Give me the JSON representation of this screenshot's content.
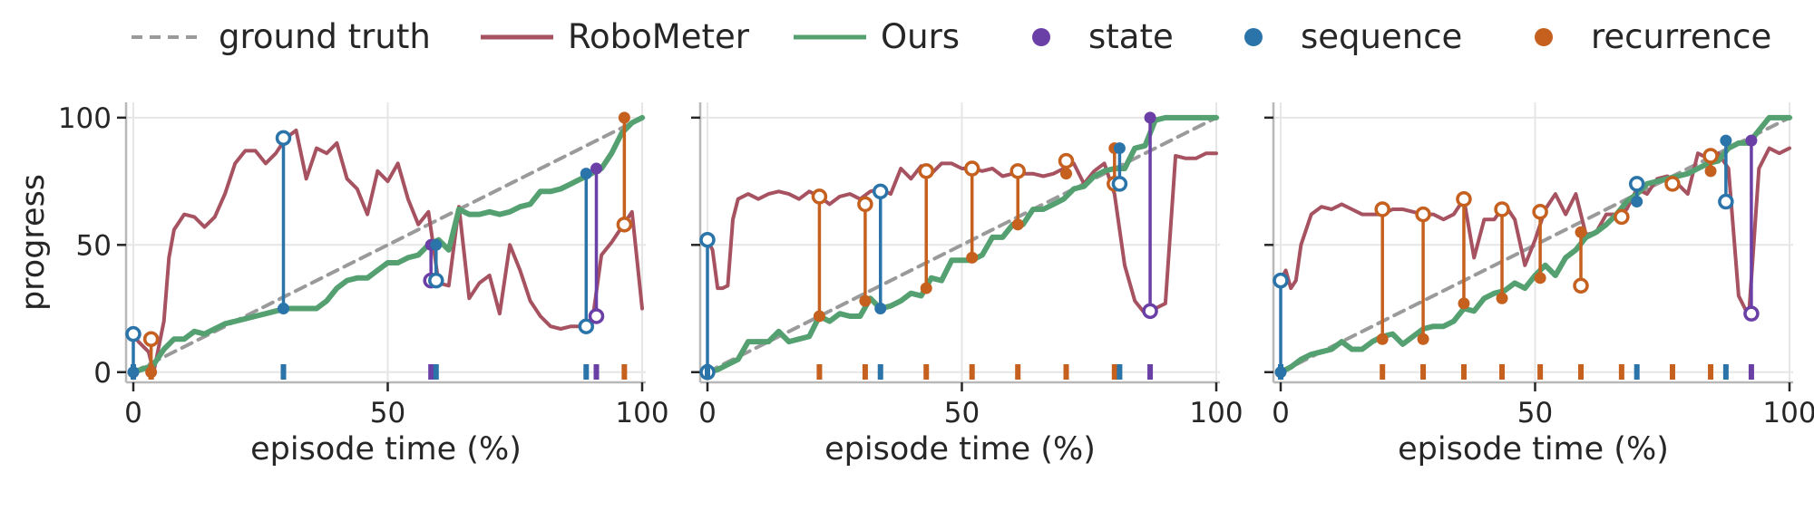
{
  "colors": {
    "ground_truth": "#9a9a9a",
    "robometer": "#a65261",
    "ours": "#55a071",
    "state": "#6a3fa6",
    "sequence": "#2b74aa",
    "recurrence": "#c5601f",
    "grid": "#e6e6e6",
    "spine": "#b8b8b8"
  },
  "legend": [
    {
      "label": "ground truth",
      "kind": "dash",
      "color_key": "ground_truth"
    },
    {
      "label": "RoboMeter",
      "kind": "line",
      "color_key": "robometer"
    },
    {
      "label": "Ours",
      "kind": "line",
      "color_key": "ours"
    },
    {
      "label": "state",
      "kind": "dot",
      "color_key": "state"
    },
    {
      "label": "sequence",
      "kind": "dot",
      "color_key": "sequence"
    },
    {
      "label": "recurrence",
      "kind": "dot",
      "color_key": "recurrence"
    }
  ],
  "chart_data": [
    {
      "type": "line",
      "xlabel": "episode time (%)",
      "ylabel": "progress",
      "xlim": [
        0,
        100
      ],
      "ylim": [
        -4,
        106
      ],
      "xticks": [
        0,
        50,
        100
      ],
      "yticks": [
        0,
        50,
        100
      ],
      "grid": true,
      "series": [
        {
          "name": "ground truth",
          "color_key": "ground_truth",
          "style": "dashed",
          "x": [
            0,
            100
          ],
          "y": [
            0,
            100
          ]
        },
        {
          "name": "RoboMeter",
          "color_key": "robometer",
          "style": "solid",
          "x": [
            0,
            1,
            3,
            4,
            6,
            7,
            8,
            10,
            12,
            14,
            16,
            18,
            20,
            22,
            24,
            26,
            28,
            30,
            32,
            34,
            36,
            38,
            40,
            42,
            44,
            46,
            48,
            50,
            52,
            54,
            56,
            58,
            60,
            62,
            64,
            66,
            68,
            70,
            72,
            74,
            76,
            78,
            80,
            82,
            84,
            86,
            88,
            90,
            92,
            94,
            96,
            98,
            100
          ],
          "y": [
            15,
            12,
            8,
            0,
            20,
            45,
            56,
            62,
            61,
            57,
            61,
            70,
            82,
            87,
            87,
            82,
            86,
            92,
            95,
            76,
            88,
            86,
            90,
            76,
            72,
            62,
            79,
            75,
            82,
            68,
            58,
            63,
            35,
            34,
            65,
            29,
            35,
            38,
            23,
            50,
            40,
            28,
            22,
            18,
            17,
            18,
            18,
            17,
            46,
            51,
            57,
            63,
            25
          ]
        },
        {
          "name": "Ours",
          "color_key": "ours",
          "style": "solid",
          "x": [
            0,
            3,
            4,
            6,
            8,
            10,
            12,
            14,
            16,
            18,
            20,
            22,
            24,
            26,
            28,
            30,
            32,
            34,
            36,
            38,
            40,
            42,
            44,
            46,
            48,
            50,
            52,
            54,
            56,
            58,
            60,
            62,
            64,
            66,
            68,
            70,
            72,
            74,
            76,
            78,
            80,
            82,
            84,
            86,
            88,
            90,
            92,
            94,
            96,
            98,
            100
          ],
          "y": [
            0,
            2,
            3,
            9,
            13,
            13,
            16,
            15,
            17,
            19,
            20,
            21,
            22,
            23,
            24,
            25,
            25,
            25,
            25,
            28,
            33,
            36,
            37,
            37,
            40,
            43,
            43,
            45,
            46,
            50,
            52,
            48,
            64,
            62,
            62,
            63,
            62,
            63,
            65,
            66,
            71,
            71,
            72,
            74,
            76,
            78,
            80,
            86,
            94,
            98,
            100
          ]
        }
      ],
      "markers": [
        {
          "kind": "sequence",
          "x": 0,
          "top": 15,
          "bottom": 0,
          "hollow": "top"
        },
        {
          "kind": "recurrence",
          "x": 3.5,
          "top": 13,
          "bottom": 0,
          "hollow": "top"
        },
        {
          "kind": "sequence",
          "x": 29.5,
          "top": 92,
          "bottom": 25,
          "hollow": "top"
        },
        {
          "kind": "state",
          "x": 58.5,
          "top": 50,
          "bottom": 36,
          "hollow": "bottom"
        },
        {
          "kind": "sequence",
          "x": 59.5,
          "top": 50,
          "bottom": 36,
          "hollow": "bottom"
        },
        {
          "kind": "sequence",
          "x": 89,
          "top": 78,
          "bottom": 18,
          "hollow": "bottom"
        },
        {
          "kind": "state",
          "x": 91,
          "top": 80,
          "bottom": 22,
          "hollow": "bottom"
        },
        {
          "kind": "recurrence",
          "x": 96.5,
          "top": 100,
          "bottom": 58,
          "hollow": "bottom"
        }
      ]
    },
    {
      "type": "line",
      "xlabel": "episode time (%)",
      "ylabel": "",
      "xlim": [
        0,
        100
      ],
      "ylim": [
        -4,
        106
      ],
      "xticks": [
        0,
        50,
        100
      ],
      "yticks": [
        0,
        50,
        100
      ],
      "grid": true,
      "series": [
        {
          "name": "ground truth",
          "color_key": "ground_truth",
          "style": "dashed",
          "x": [
            0,
            100
          ],
          "y": [
            0,
            100
          ]
        },
        {
          "name": "RoboMeter",
          "color_key": "robometer",
          "style": "solid",
          "x": [
            0,
            1,
            2,
            3,
            4,
            5,
            6,
            8,
            10,
            12,
            14,
            16,
            18,
            20,
            22,
            24,
            26,
            28,
            30,
            32,
            34,
            36,
            38,
            40,
            42,
            44,
            46,
            48,
            50,
            52,
            54,
            56,
            58,
            60,
            62,
            64,
            66,
            68,
            70,
            72,
            74,
            76,
            78,
            80,
            82,
            84,
            86,
            88,
            90,
            92,
            94,
            96,
            98,
            100
          ],
          "y": [
            52,
            48,
            33,
            33,
            34,
            60,
            68,
            70,
            68,
            70,
            71,
            70,
            68,
            71,
            69,
            66,
            69,
            70,
            68,
            71,
            72,
            70,
            80,
            76,
            81,
            78,
            82,
            82,
            80,
            80,
            79,
            80,
            77,
            78,
            78,
            78,
            77,
            78,
            80,
            82,
            74,
            79,
            82,
            70,
            42,
            28,
            23,
            25,
            27,
            85,
            84,
            84,
            86,
            86
          ]
        },
        {
          "name": "Ours",
          "color_key": "ours",
          "style": "solid",
          "x": [
            0,
            2,
            4,
            6,
            8,
            10,
            12,
            14,
            16,
            18,
            20,
            22,
            24,
            26,
            28,
            30,
            32,
            34,
            36,
            38,
            40,
            42,
            44,
            46,
            48,
            50,
            52,
            54,
            56,
            58,
            60,
            62,
            64,
            66,
            68,
            70,
            72,
            74,
            76,
            78,
            80,
            82,
            84,
            86,
            88,
            90,
            92,
            94,
            96,
            98,
            100
          ],
          "y": [
            0,
            1,
            3,
            5,
            12,
            12,
            12,
            16,
            12,
            13,
            14,
            22,
            20,
            23,
            22,
            22,
            29,
            25,
            26,
            28,
            31,
            30,
            37,
            36,
            44,
            44,
            44,
            46,
            53,
            53,
            58,
            58,
            64,
            64,
            66,
            68,
            72,
            73,
            77,
            79,
            80,
            80,
            88,
            89,
            99,
            100,
            100,
            100,
            100,
            100,
            100
          ]
        }
      ],
      "markers": [
        {
          "kind": "sequence",
          "x": 0,
          "top": 52,
          "bottom": 0,
          "hollow": "both"
        },
        {
          "kind": "recurrence",
          "x": 22,
          "top": 69,
          "bottom": 22,
          "hollow": "top"
        },
        {
          "kind": "recurrence",
          "x": 31,
          "top": 66,
          "bottom": 28,
          "hollow": "top"
        },
        {
          "kind": "sequence",
          "x": 34,
          "top": 71,
          "bottom": 25,
          "hollow": "top"
        },
        {
          "kind": "recurrence",
          "x": 43,
          "top": 79,
          "bottom": 33,
          "hollow": "top"
        },
        {
          "kind": "recurrence",
          "x": 52,
          "top": 80,
          "bottom": 45,
          "hollow": "top"
        },
        {
          "kind": "recurrence",
          "x": 61,
          "top": 79,
          "bottom": 58,
          "hollow": "top"
        },
        {
          "kind": "recurrence",
          "x": 70.5,
          "top": 83,
          "bottom": 78,
          "hollow": "top"
        },
        {
          "kind": "recurrence",
          "x": 80,
          "top": 88,
          "bottom": 74,
          "hollow": "bottom"
        },
        {
          "kind": "sequence",
          "x": 81,
          "top": 88,
          "bottom": 74,
          "hollow": "bottom"
        },
        {
          "kind": "state",
          "x": 87,
          "top": 100,
          "bottom": 24,
          "hollow": "bottom"
        }
      ]
    },
    {
      "type": "line",
      "xlabel": "episode time (%)",
      "ylabel": "",
      "xlim": [
        0,
        100
      ],
      "ylim": [
        -4,
        106
      ],
      "xticks": [
        0,
        50,
        100
      ],
      "yticks": [
        0,
        50,
        100
      ],
      "grid": true,
      "series": [
        {
          "name": "ground truth",
          "color_key": "ground_truth",
          "style": "dashed",
          "x": [
            0,
            100
          ],
          "y": [
            0,
            100
          ]
        },
        {
          "name": "RoboMeter",
          "color_key": "robometer",
          "style": "solid",
          "x": [
            0,
            1,
            2,
            3,
            4,
            6,
            8,
            10,
            12,
            14,
            16,
            18,
            20,
            22,
            24,
            26,
            28,
            30,
            32,
            34,
            36,
            38,
            40,
            42,
            44,
            46,
            48,
            50,
            52,
            54,
            56,
            58,
            60,
            62,
            64,
            66,
            68,
            70,
            72,
            74,
            76,
            78,
            80,
            82,
            84,
            86,
            88,
            90,
            92,
            94,
            96,
            98,
            100
          ],
          "y": [
            36,
            40,
            33,
            36,
            50,
            62,
            65,
            64,
            66,
            64,
            62,
            62,
            62,
            64,
            64,
            63,
            62,
            62,
            60,
            62,
            68,
            45,
            60,
            60,
            66,
            60,
            42,
            52,
            64,
            70,
            62,
            70,
            54,
            55,
            62,
            62,
            64,
            72,
            70,
            76,
            77,
            74,
            70,
            86,
            84,
            86,
            80,
            30,
            22,
            80,
            88,
            86,
            88
          ]
        },
        {
          "name": "Ours",
          "color_key": "ours",
          "style": "solid",
          "x": [
            0,
            2,
            4,
            6,
            8,
            10,
            12,
            14,
            16,
            18,
            20,
            22,
            24,
            26,
            28,
            30,
            32,
            34,
            36,
            38,
            40,
            42,
            44,
            46,
            48,
            50,
            52,
            54,
            56,
            58,
            60,
            62,
            64,
            66,
            68,
            70,
            72,
            74,
            76,
            78,
            80,
            82,
            84,
            86,
            88,
            90,
            92,
            94,
            96,
            98,
            100
          ],
          "y": [
            0,
            2,
            5,
            7,
            8,
            9,
            12,
            9,
            9,
            12,
            14,
            15,
            11,
            14,
            17,
            18,
            18,
            20,
            25,
            24,
            29,
            31,
            32,
            35,
            33,
            38,
            42,
            38,
            45,
            48,
            53,
            55,
            58,
            62,
            67,
            70,
            74,
            75,
            76,
            77,
            78,
            80,
            82,
            83,
            88,
            90,
            90,
            95,
            100,
            100,
            100
          ]
        }
      ],
      "markers": [
        {
          "kind": "sequence",
          "x": 0,
          "top": 36,
          "bottom": 0,
          "hollow": "top"
        },
        {
          "kind": "recurrence",
          "x": 20,
          "top": 64,
          "bottom": 13,
          "hollow": "top"
        },
        {
          "kind": "recurrence",
          "x": 28,
          "top": 62,
          "bottom": 13,
          "hollow": "top"
        },
        {
          "kind": "recurrence",
          "x": 36,
          "top": 68,
          "bottom": 27,
          "hollow": "top"
        },
        {
          "kind": "recurrence",
          "x": 43.5,
          "top": 64,
          "bottom": 29,
          "hollow": "top"
        },
        {
          "kind": "recurrence",
          "x": 51,
          "top": 63,
          "bottom": 37,
          "hollow": "top"
        },
        {
          "kind": "recurrence",
          "x": 59,
          "top": 55,
          "bottom": 34,
          "hollow": "bottom"
        },
        {
          "kind": "recurrence",
          "x": 67,
          "top": 61,
          "bottom": 61,
          "hollow": "top"
        },
        {
          "kind": "sequence",
          "x": 70,
          "top": 74,
          "bottom": 67,
          "hollow": "top"
        },
        {
          "kind": "recurrence",
          "x": 77,
          "top": 74,
          "bottom": 74,
          "hollow": "top"
        },
        {
          "kind": "recurrence",
          "x": 84.5,
          "top": 85,
          "bottom": 79,
          "hollow": "top"
        },
        {
          "kind": "sequence",
          "x": 87.5,
          "top": 91,
          "bottom": 67,
          "hollow": "bottom"
        },
        {
          "kind": "state",
          "x": 92.5,
          "top": 91,
          "bottom": 23,
          "hollow": "bottom"
        }
      ]
    }
  ]
}
